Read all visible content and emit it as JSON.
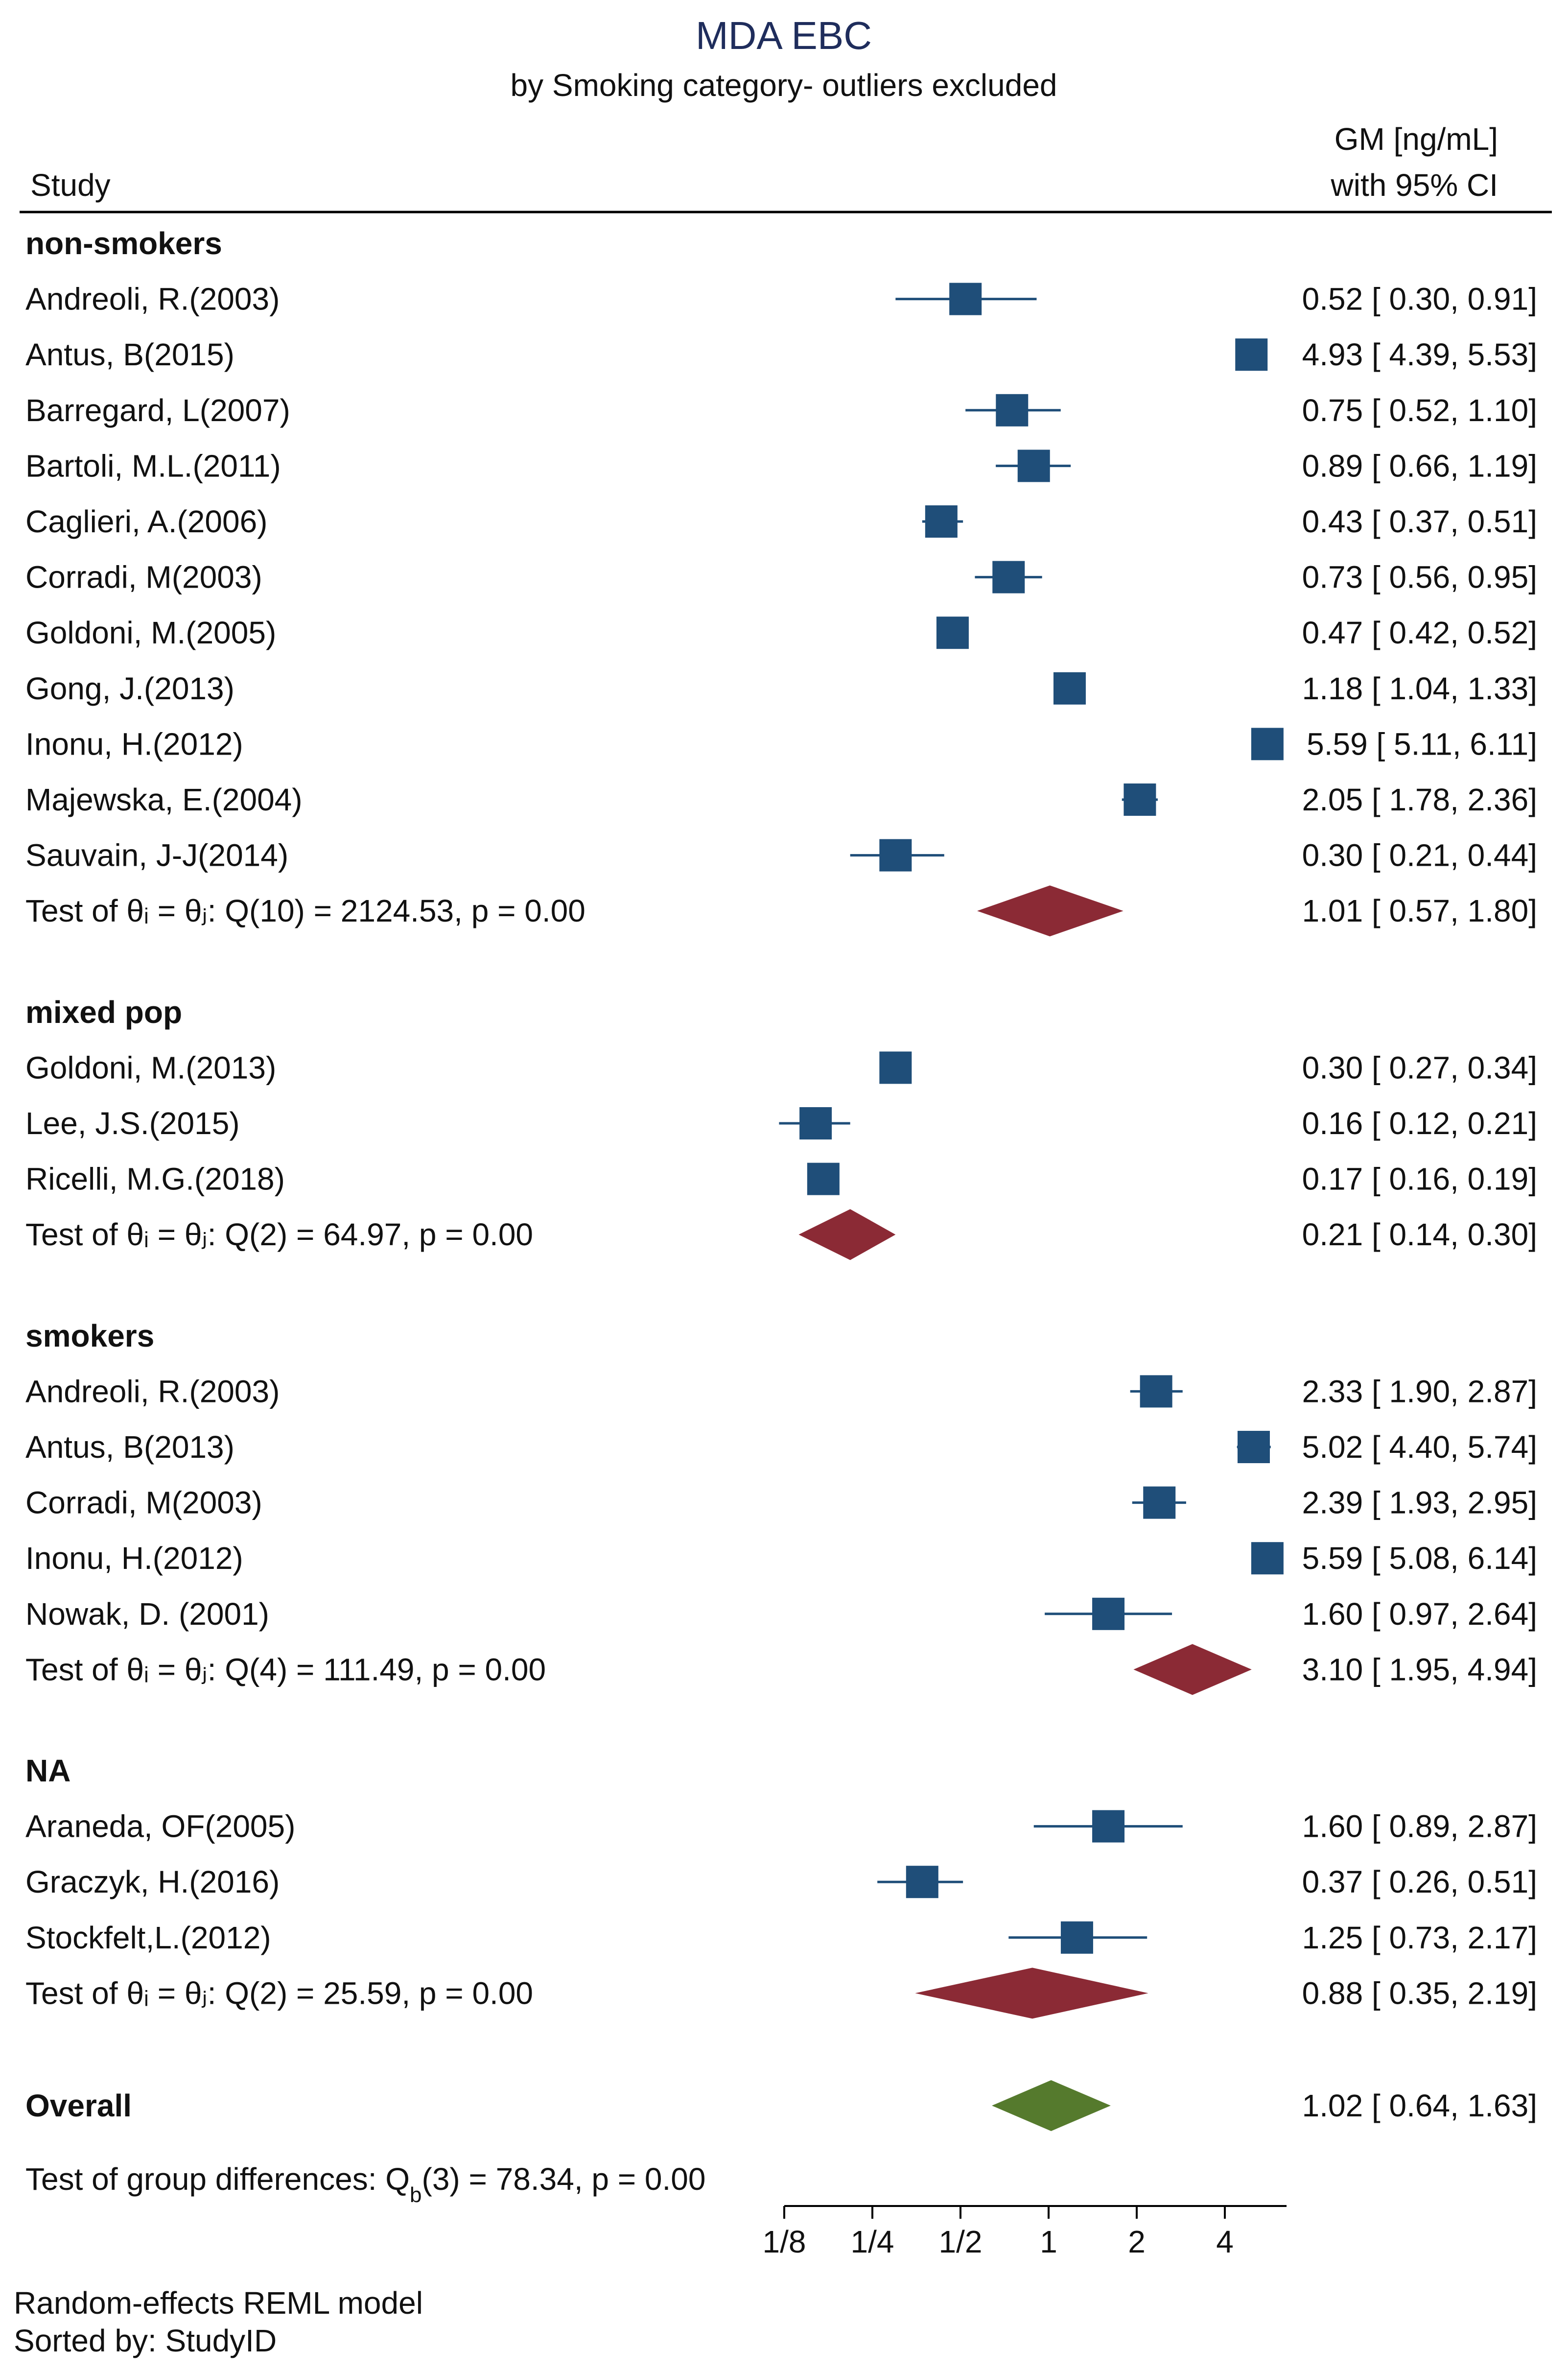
{
  "chart_data": {
    "type": "forest",
    "title": "MDA EBC",
    "subtitle": "by Smoking category- outliers excluded",
    "col_study": "Study",
    "col_effect_line1": "GM [ng/mL]",
    "col_effect_line2": "with 95% CI",
    "x_scale": "log2",
    "xlim": [
      0.125,
      6.5
    ],
    "reference_line": 1,
    "ticks": [
      {
        "value": 0.125,
        "label": "1/8"
      },
      {
        "value": 0.25,
        "label": "1/4"
      },
      {
        "value": 0.5,
        "label": "1/2"
      },
      {
        "value": 1,
        "label": "1"
      },
      {
        "value": 2,
        "label": "2"
      },
      {
        "value": 4,
        "label": "4"
      }
    ],
    "colors": {
      "study": "#1f4e79",
      "subgroup": "#8b2a35",
      "overall": "#557a2d",
      "title": "#1f2d5c"
    },
    "groups": [
      {
        "name": "non-smokers",
        "studies": [
          {
            "study": "Andreoli, R.(2003)",
            "est": 0.52,
            "lo": 0.3,
            "hi": 0.91,
            "text": "0.52 [ 0.30,  0.91]",
            "size": 1.0
          },
          {
            "study": "Antus, B(2015)",
            "est": 4.93,
            "lo": 4.39,
            "hi": 5.53,
            "text": "4.93 [ 4.39,  5.53]",
            "size": 1.0
          },
          {
            "study": "Barregard, L(2007)",
            "est": 0.75,
            "lo": 0.52,
            "hi": 1.1,
            "text": "0.75 [ 0.52,  1.10]",
            "size": 1.0
          },
          {
            "study": "Bartoli, M.L.(2011)",
            "est": 0.89,
            "lo": 0.66,
            "hi": 1.19,
            "text": "0.89 [ 0.66,  1.19]",
            "size": 1.0
          },
          {
            "study": "Caglieri, A.(2006)",
            "est": 0.43,
            "lo": 0.37,
            "hi": 0.51,
            "text": "0.43 [ 0.37,  0.51]",
            "size": 1.0
          },
          {
            "study": "Corradi, M(2003)",
            "est": 0.73,
            "lo": 0.56,
            "hi": 0.95,
            "text": "0.73 [ 0.56,  0.95]",
            "size": 1.0
          },
          {
            "study": "Goldoni, M.(2005)",
            "est": 0.47,
            "lo": 0.42,
            "hi": 0.52,
            "text": "0.47 [ 0.42,  0.52]",
            "size": 1.0
          },
          {
            "study": "Gong, J.(2013)",
            "est": 1.18,
            "lo": 1.04,
            "hi": 1.33,
            "text": "1.18 [ 1.04,  1.33]",
            "size": 1.0
          },
          {
            "study": "Inonu, H.(2012)",
            "est": 5.59,
            "lo": 5.11,
            "hi": 6.11,
            "text": "5.59 [ 5.11,  6.11]",
            "size": 1.0
          },
          {
            "study": "Majewska, E.(2004)",
            "est": 2.05,
            "lo": 1.78,
            "hi": 2.36,
            "text": "2.05 [ 1.78,  2.36]",
            "size": 1.0
          },
          {
            "study": "Sauvain, J-J(2014)",
            "est": 0.3,
            "lo": 0.21,
            "hi": 0.44,
            "text": "0.30 [ 0.21,  0.44]",
            "size": 1.0
          }
        ],
        "test": {
          "text": "Test of θᵢ = θⱼ: Q(10) = 2124.53, p = 0.00",
          "est": 1.01,
          "lo": 0.57,
          "hi": 1.8,
          "est_text": "1.01 [ 0.57,  1.80]"
        }
      },
      {
        "name": "mixed pop",
        "studies": [
          {
            "study": "Goldoni, M.(2013)",
            "est": 0.3,
            "lo": 0.27,
            "hi": 0.34,
            "text": "0.30 [ 0.27,  0.34]",
            "size": 1.0
          },
          {
            "study": "Lee, J.S.(2015)",
            "est": 0.16,
            "lo": 0.12,
            "hi": 0.21,
            "text": "0.16 [ 0.12,  0.21]",
            "size": 1.0
          },
          {
            "study": "Ricelli, M.G.(2018)",
            "est": 0.17,
            "lo": 0.16,
            "hi": 0.19,
            "text": "0.17 [ 0.16,  0.19]",
            "size": 1.0
          }
        ],
        "test": {
          "text": "Test of θᵢ = θⱼ: Q(2) = 64.97, p = 0.00",
          "est": 0.21,
          "lo": 0.14,
          "hi": 0.3,
          "est_text": "0.21 [ 0.14,  0.30]"
        }
      },
      {
        "name": "smokers",
        "studies": [
          {
            "study": "Andreoli, R.(2003)",
            "est": 2.33,
            "lo": 1.9,
            "hi": 2.87,
            "text": "2.33 [ 1.90,  2.87]",
            "size": 1.0
          },
          {
            "study": "Antus, B(2013)",
            "est": 5.02,
            "lo": 4.4,
            "hi": 5.74,
            "text": "5.02 [ 4.40,  5.74]",
            "size": 1.0
          },
          {
            "study": "Corradi, M(2003)",
            "est": 2.39,
            "lo": 1.93,
            "hi": 2.95,
            "text": "2.39 [ 1.93,  2.95]",
            "size": 1.0
          },
          {
            "study": "Inonu, H.(2012)",
            "est": 5.59,
            "lo": 5.08,
            "hi": 6.14,
            "text": "5.59 [ 5.08,  6.14]",
            "size": 1.0
          },
          {
            "study": "Nowak, D. (2001)",
            "est": 1.6,
            "lo": 0.97,
            "hi": 2.64,
            "text": "1.60 [ 0.97,  2.64]",
            "size": 1.0
          }
        ],
        "test": {
          "text": "Test of θᵢ = θⱼ: Q(4) = 111.49, p = 0.00",
          "est": 3.1,
          "lo": 1.95,
          "hi": 4.94,
          "est_text": "3.10 [ 1.95,  4.94]"
        }
      },
      {
        "name": "NA",
        "studies": [
          {
            "study": "Araneda, OF(2005)",
            "est": 1.6,
            "lo": 0.89,
            "hi": 2.87,
            "text": "1.60 [ 0.89,  2.87]",
            "size": 1.0
          },
          {
            "study": "Graczyk, H.(2016)",
            "est": 0.37,
            "lo": 0.26,
            "hi": 0.51,
            "text": "0.37 [ 0.26,  0.51]",
            "size": 1.0
          },
          {
            "study": "Stockfelt,L.(2012)",
            "est": 1.25,
            "lo": 0.73,
            "hi": 2.17,
            "text": "1.25 [ 0.73,  2.17]",
            "size": 1.0
          }
        ],
        "test": {
          "text": "Test of θᵢ = θⱼ: Q(2) = 25.59, p = 0.00",
          "est": 0.88,
          "lo": 0.35,
          "hi": 2.19,
          "est_text": "0.88 [ 0.35,  2.19]"
        }
      }
    ],
    "overall": {
      "label": "Overall",
      "est": 1.02,
      "lo": 0.64,
      "hi": 1.63,
      "text": "1.02 [ 0.64,  1.63]"
    },
    "group_test": "Test of group differences: Q_b(3) = 78.34, p = 0.00",
    "model_note": "Random-effects REML model",
    "sort_note": "Sorted by: StudyID"
  }
}
